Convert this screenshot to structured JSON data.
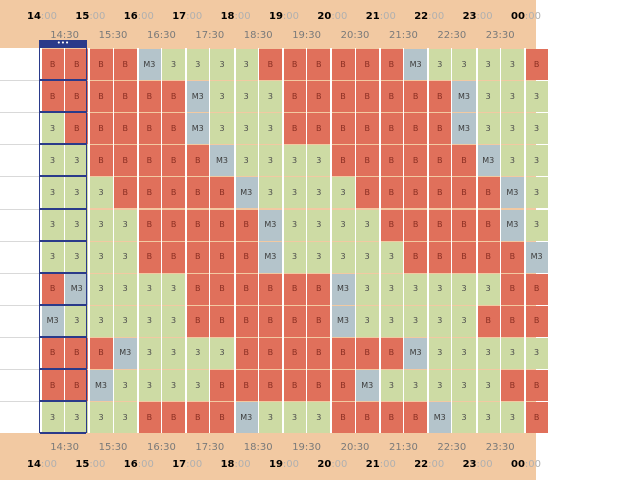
{
  "hours": [
    "14",
    "15",
    "16",
    "17",
    "18",
    "19",
    "20",
    "21",
    "22",
    "23",
    "00"
  ],
  "minutes": ":00",
  "half_labels": [
    "14:30",
    "15:30",
    "16:30",
    "17:30",
    "18:30",
    "19:30",
    "20:30",
    "21:30",
    "22:30",
    "23:30"
  ],
  "selection_indicator": "•••",
  "grid_rows": [
    [
      "B",
      "B",
      "B",
      "B",
      "M3",
      "3",
      "3",
      "3",
      "3",
      "B",
      "B",
      "B",
      "B",
      "B",
      "B",
      "M3",
      "3",
      "3",
      "3",
      "3",
      "B"
    ],
    [
      "B",
      "B",
      "B",
      "B",
      "B",
      "B",
      "M3",
      "3",
      "3",
      "3",
      "B",
      "B",
      "B",
      "B",
      "B",
      "B",
      "B",
      "M3",
      "3",
      "3",
      "3"
    ],
    [
      "3",
      "B",
      "B",
      "B",
      "B",
      "B",
      "M3",
      "3",
      "3",
      "3",
      "B",
      "B",
      "B",
      "B",
      "B",
      "B",
      "B",
      "M3",
      "3",
      "3",
      "3"
    ],
    [
      "3",
      "3",
      "B",
      "B",
      "B",
      "B",
      "B",
      "M3",
      "3",
      "3",
      "3",
      "3",
      "B",
      "B",
      "B",
      "B",
      "B",
      "B",
      "M3",
      "3",
      "3"
    ],
    [
      "3",
      "3",
      "3",
      "B",
      "B",
      "B",
      "B",
      "B",
      "M3",
      "3",
      "3",
      "3",
      "3",
      "B",
      "B",
      "B",
      "B",
      "B",
      "B",
      "M3",
      "3"
    ],
    [
      "3",
      "3",
      "3",
      "3",
      "B",
      "B",
      "B",
      "B",
      "B",
      "M3",
      "3",
      "3",
      "3",
      "3",
      "B",
      "B",
      "B",
      "B",
      "B",
      "M3",
      "3"
    ],
    [
      "3",
      "3",
      "3",
      "3",
      "B",
      "B",
      "B",
      "B",
      "B",
      "M3",
      "3",
      "3",
      "3",
      "3",
      "3",
      "B",
      "B",
      "B",
      "B",
      "B",
      "M3"
    ],
    [
      "B",
      "M3",
      "3",
      "3",
      "3",
      "3",
      "B",
      "B",
      "B",
      "B",
      "B",
      "B",
      "M3",
      "3",
      "3",
      "3",
      "3",
      "3",
      "3",
      "B",
      "B"
    ],
    [
      "M3",
      "3",
      "3",
      "3",
      "3",
      "3",
      "B",
      "B",
      "B",
      "B",
      "B",
      "B",
      "M3",
      "3",
      "3",
      "3",
      "3",
      "3",
      "B",
      "B",
      "B"
    ],
    [
      "B",
      "B",
      "B",
      "M3",
      "3",
      "3",
      "3",
      "3",
      "B",
      "B",
      "B",
      "B",
      "B",
      "B",
      "B",
      "M3",
      "3",
      "3",
      "3",
      "3",
      "3"
    ],
    [
      "B",
      "B",
      "M3",
      "3",
      "3",
      "3",
      "3",
      "B",
      "B",
      "B",
      "B",
      "B",
      "B",
      "M3",
      "3",
      "3",
      "3",
      "3",
      "3",
      "B",
      "B"
    ],
    [
      "3",
      "3",
      "3",
      "3",
      "B",
      "B",
      "B",
      "B",
      "M3",
      "3",
      "3",
      "3",
      "B",
      "B",
      "B",
      "B",
      "M3",
      "3",
      "3",
      "3",
      "B"
    ]
  ],
  "colors": {
    "B": "#e0705b",
    "3": "#cddba4",
    "M3": "#b4c4cb",
    "panel": "#f2c9a2",
    "selection": "#2a3a8a"
  }
}
